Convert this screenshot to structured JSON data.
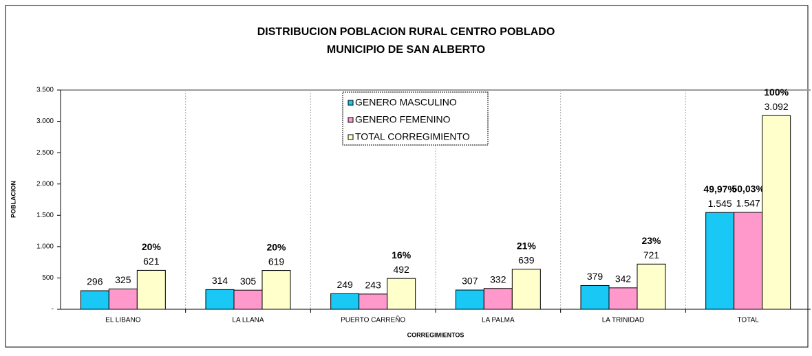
{
  "chart_data": {
    "type": "bar",
    "title": [
      "DISTRIBUCION POBLACION RURAL CENTRO POBLADO",
      "MUNICIPIO DE SAN ALBERTO"
    ],
    "x_label": "CORREGIMIENTOS",
    "y_label": "POBLACION",
    "categories": [
      "EL LIBANO",
      "LA LLANA",
      "PUERTO CARREÑO",
      "LA PALMA",
      "LA TRINIDAD",
      "TOTAL"
    ],
    "series": [
      {
        "name": "GENERO MASCULINO",
        "color": "#19c8f5",
        "values": [
          296,
          314,
          249,
          307,
          379,
          1545
        ],
        "value_labels": [
          "296",
          "314",
          "249",
          "307",
          "379",
          "1.545"
        ],
        "percent_labels": [
          null,
          null,
          null,
          null,
          null,
          "49,97%"
        ]
      },
      {
        "name": "GENERO FEMENINO",
        "color": "#ff99cc",
        "values": [
          325,
          305,
          243,
          332,
          342,
          1547
        ],
        "value_labels": [
          "325",
          "305",
          "243",
          "332",
          "342",
          "1.547"
        ],
        "percent_labels": [
          null,
          null,
          null,
          null,
          null,
          "50,03%"
        ]
      },
      {
        "name": "TOTAL CORREGIMIENTO",
        "color": "#ffffcc",
        "values": [
          621,
          619,
          492,
          639,
          721,
          3092
        ],
        "value_labels": [
          "621",
          "619",
          "492",
          "639",
          "721",
          "3.092"
        ],
        "percent_labels": [
          "20%",
          "20%",
          "16%",
          "21%",
          "23%",
          "100%"
        ]
      }
    ],
    "ylim": [
      0,
      3500
    ],
    "yticks": [
      {
        "value": 0,
        "label": "-"
      },
      500,
      {
        "value": 1000,
        "label": "1.000"
      },
      {
        "value": 1500,
        "label": "1.500"
      },
      {
        "value": 2000,
        "label": "2.000"
      },
      {
        "value": 2500,
        "label": "2.500"
      },
      {
        "value": 3000,
        "label": "3.000"
      },
      {
        "value": 3500,
        "label": "3.500"
      }
    ],
    "grid": false,
    "legend": "top"
  }
}
